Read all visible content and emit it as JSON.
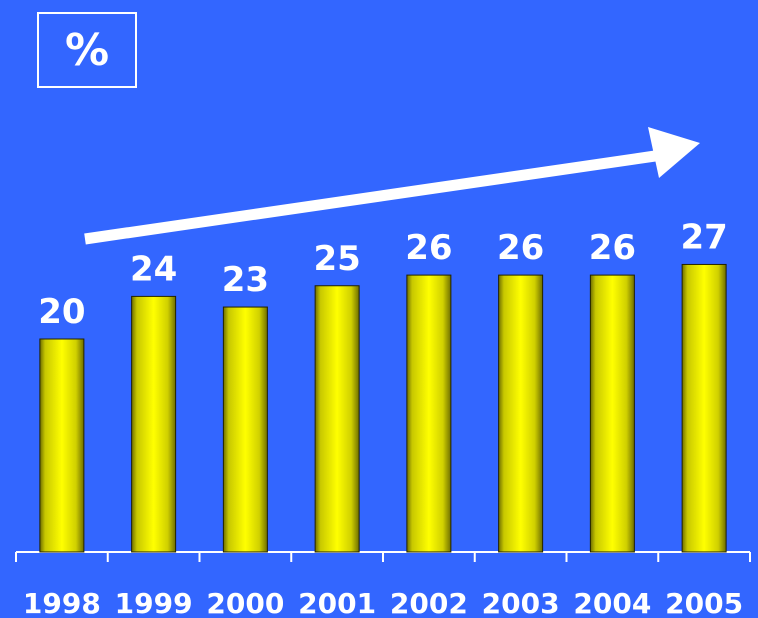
{
  "unit_label": "%",
  "colors": {
    "background": "#3366ff",
    "bar_light": "#ffff00",
    "bar_dark": "#6e6e00",
    "text": "#ffffff",
    "trend_arrow": "#ffffff"
  },
  "chart_data": {
    "type": "bar",
    "categories": [
      "1998",
      "1999",
      "2000",
      "2001",
      "2002",
      "2003",
      "2004",
      "2005"
    ],
    "values": [
      20,
      24,
      23,
      25,
      26,
      26,
      26,
      27
    ],
    "data_labels": [
      "20",
      "24",
      "23",
      "25",
      "26",
      "26",
      "26",
      "27"
    ],
    "title": "",
    "xlabel": "",
    "ylabel": "%",
    "ylim": [
      0,
      40
    ],
    "grid": false,
    "legend": "none",
    "trend_arrow": "increasing"
  }
}
